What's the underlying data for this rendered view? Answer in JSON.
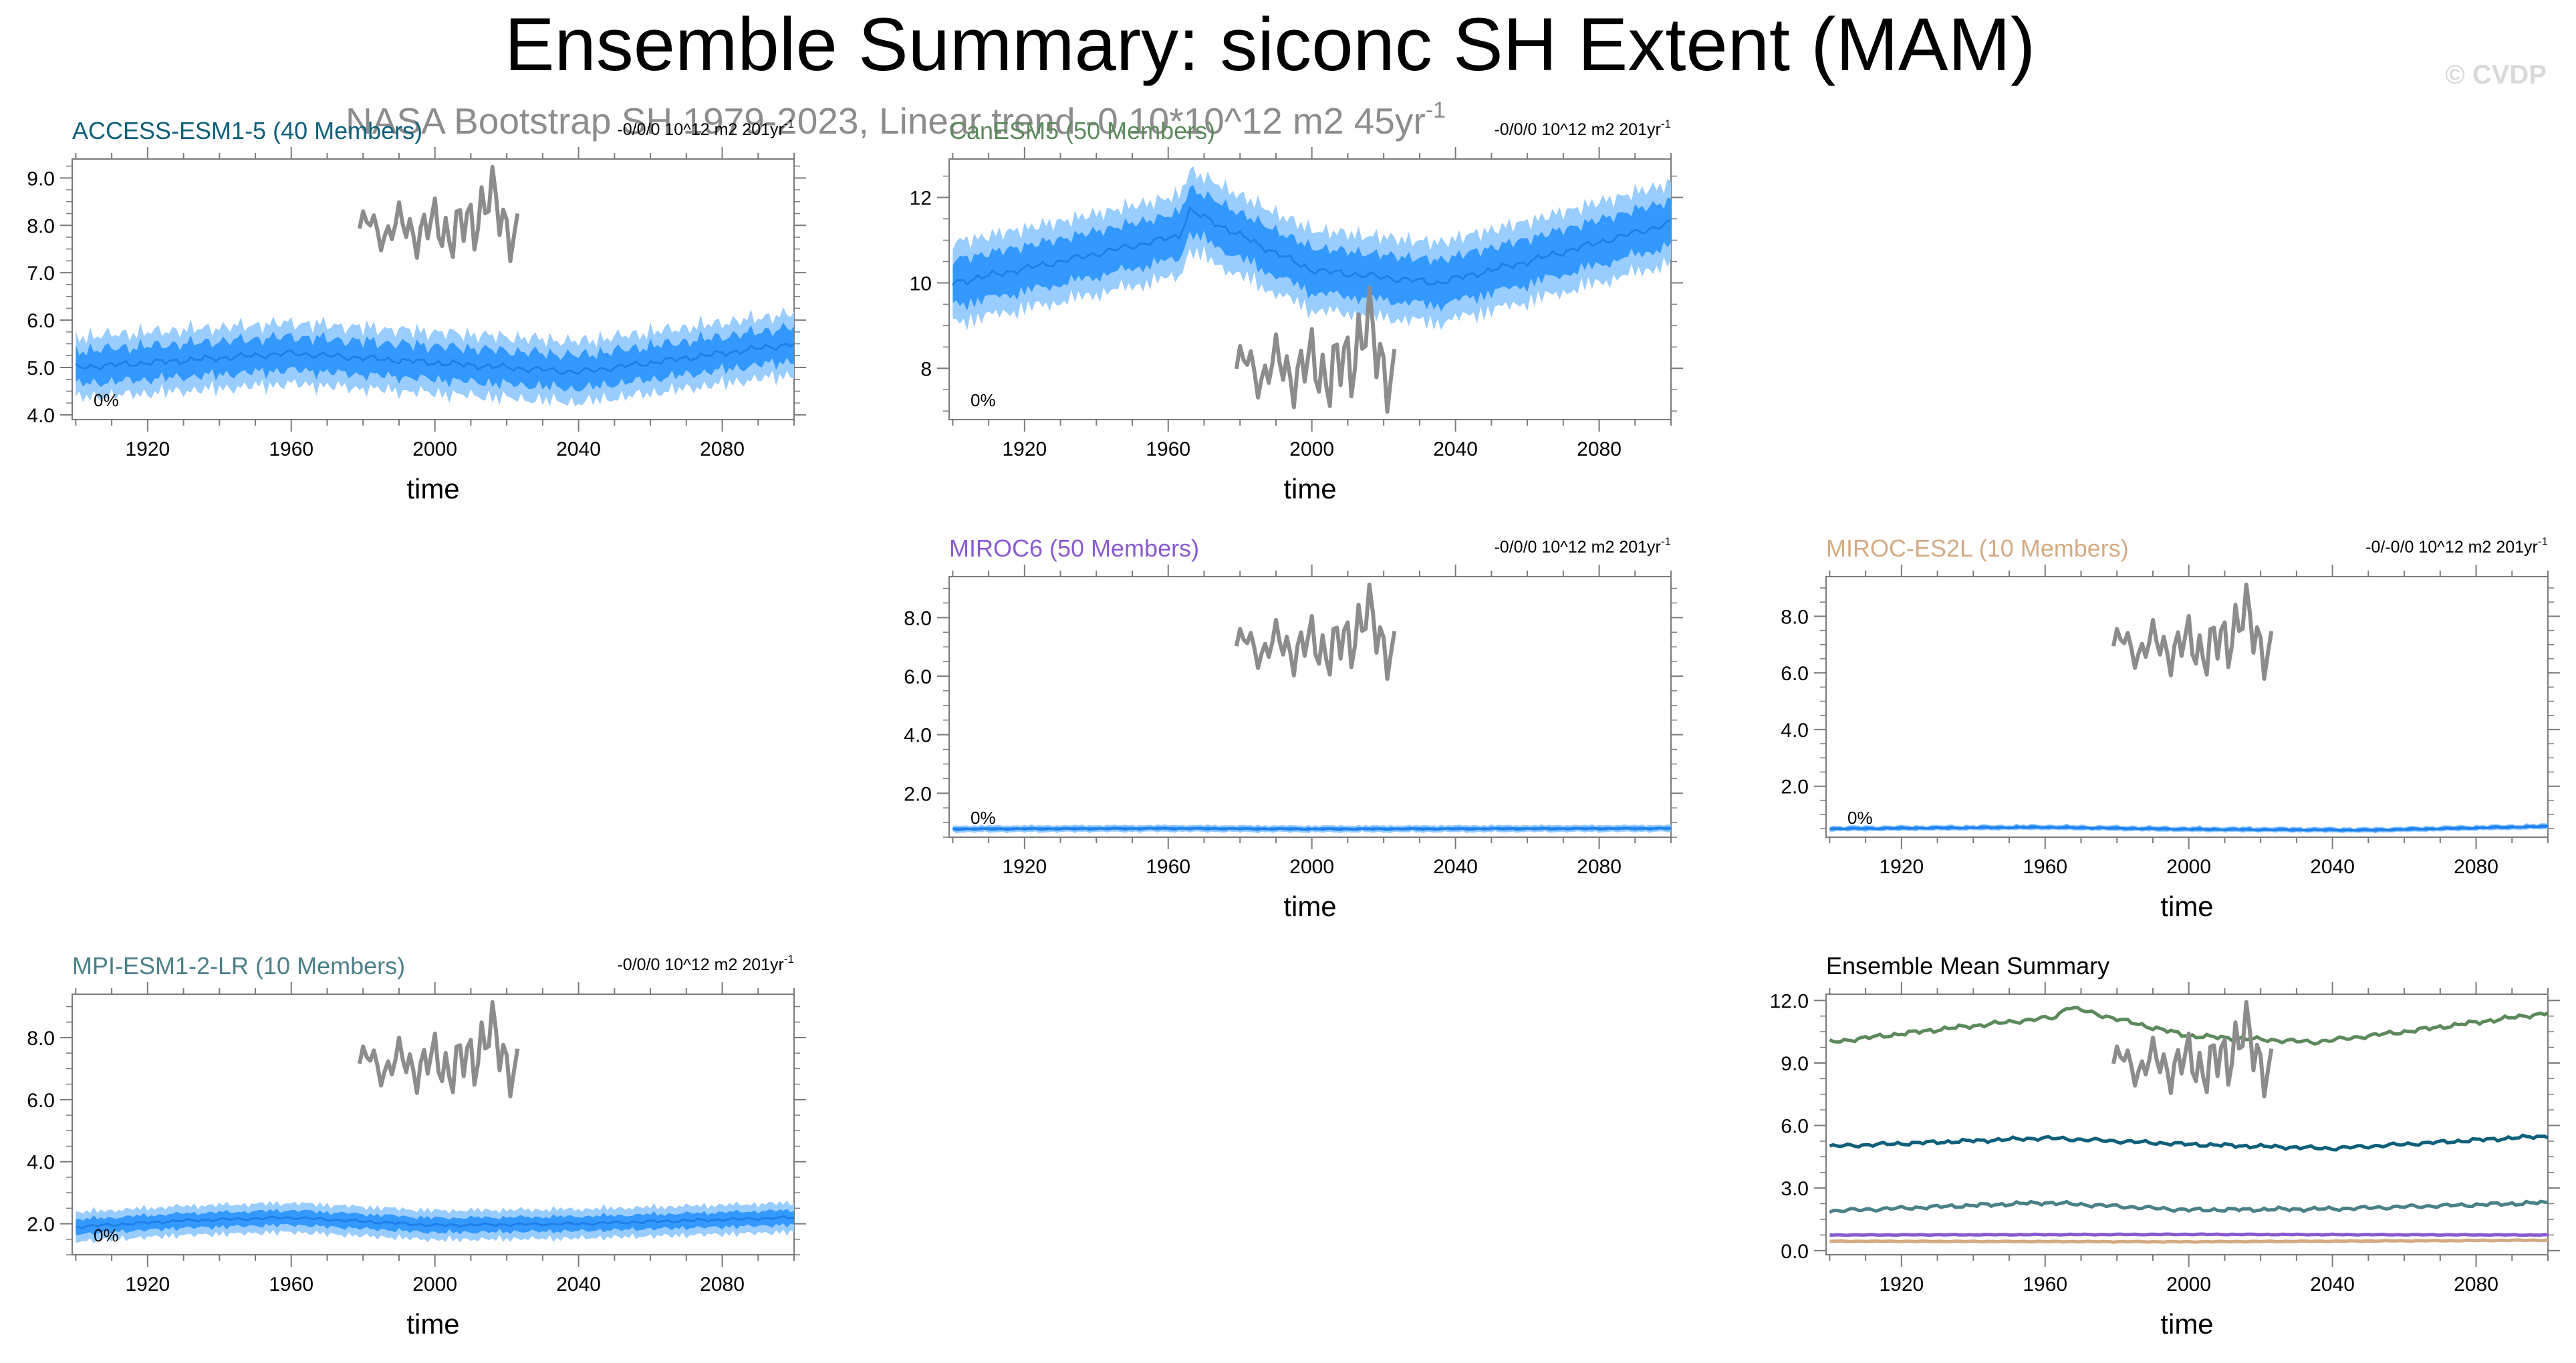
{
  "page": {
    "title": "Ensemble Summary: siconc SH Extent (MAM)",
    "watermark": "© CVDP",
    "obs_subtitle": "NASA Bootstrap SH 1979-2023, Linear trend -0.10*10^12 m2 45yr",
    "obs_subtitle_sup": "-1"
  },
  "colors": {
    "band_outer": "#99ccff",
    "band_inner": "#3399ff",
    "mean_line": "#1f7fe6",
    "obs_line": "#8c8c8c",
    "frame": "#7a7a7a",
    "ACCESS-ESM1-5": "#0f5f7a",
    "CanESM5": "#5a8a5a",
    "MIROC6": "#8a5ad0",
    "MIROC-ES2L": "#d4aa82",
    "MPI-ESM1-2-LR": "#4a8088"
  },
  "chart_data": [
    {
      "id": "access",
      "type": "area",
      "title": "ACCESS-ESM1-5 (40 Members)",
      "trend_label": "-0/0/0 10^12 m2 201yr",
      "trend_sup": "-1",
      "pct_label": "0%",
      "xlabel": "time",
      "ylabel": "",
      "xlim": [
        1899,
        2100
      ],
      "ylim": [
        3.9,
        9.4
      ],
      "xticks": [
        "1920",
        "1960",
        "2000",
        "2040",
        "2080"
      ],
      "yticks": [
        "4.0",
        "5.0",
        "6.0",
        "7.0",
        "8.0",
        "9.0"
      ],
      "mean_keypoints": [
        [
          1900,
          5.0
        ],
        [
          1960,
          5.3
        ],
        [
          2000,
          5.1
        ],
        [
          2040,
          4.9
        ],
        [
          2100,
          5.5
        ]
      ],
      "inner_halfwidth": 0.3,
      "outer_halfwidth": 0.55,
      "noise": 0.18,
      "obs_ylim": [
        6.85,
        9.3
      ],
      "obs_x": [
        1979,
        2023
      ],
      "obs_y": [
        0.42,
        0.2
      ]
    },
    {
      "id": "canesm",
      "type": "area",
      "title": "CanESM5 (50 Members)",
      "trend_label": "-0/0/0 10^12 m2 201yr",
      "trend_sup": "-1",
      "pct_label": "0%",
      "xlabel": "time",
      "ylabel": "",
      "xlim": [
        1899,
        2100
      ],
      "ylim": [
        6.8,
        12.9
      ],
      "xticks": [
        "1920",
        "1960",
        "2000",
        "2040",
        "2080"
      ],
      "yticks": [
        "8",
        "10",
        "12"
      ],
      "mean_keypoints": [
        [
          1900,
          10.0
        ],
        [
          1930,
          10.5
        ],
        [
          1963,
          11.1
        ],
        [
          1966,
          11.7
        ],
        [
          1985,
          10.9
        ],
        [
          2000,
          10.3
        ],
        [
          2035,
          10.0
        ],
        [
          2060,
          10.5
        ],
        [
          2100,
          11.4
        ]
      ],
      "inner_halfwidth": 0.45,
      "outer_halfwidth": 0.8,
      "noise": 0.22,
      "obs_ylim": [
        8.0,
        10.8
      ],
      "obs_x": [
        1979,
        2023
      ],
      "obs_y": [
        0.5,
        0.15
      ]
    },
    {
      "id": "miroc6",
      "type": "area",
      "title": "MIROC6 (50 Members)",
      "trend_label": "-0/0/0 10^12 m2 201yr",
      "trend_sup": "-1",
      "pct_label": "0%",
      "xlabel": "time",
      "ylabel": "",
      "xlim": [
        1899,
        2100
      ],
      "ylim": [
        0.5,
        9.4
      ],
      "xticks": [
        "1920",
        "1960",
        "2000",
        "2040",
        "2080"
      ],
      "yticks": [
        "2.0",
        "4.0",
        "6.0",
        "8.0"
      ],
      "mean_keypoints": [
        [
          1900,
          0.78
        ],
        [
          1960,
          0.8
        ],
        [
          2000,
          0.78
        ],
        [
          2100,
          0.8
        ]
      ],
      "inner_halfwidth": 0.05,
      "outer_halfwidth": 0.1,
      "noise": 0.03,
      "obs_ylim": [
        6.85,
        9.3
      ],
      "obs_x": [
        1979,
        2023
      ],
      "obs_y": [
        0.5,
        0.15
      ]
    },
    {
      "id": "miroces2l",
      "type": "area",
      "title": "MIROC-ES2L (10 Members)",
      "trend_label": "-0/-0/0 10^12 m2 201yr",
      "trend_sup": "-1",
      "pct_label": "0%",
      "xlabel": "time",
      "ylabel": "",
      "xlim": [
        1899,
        2100
      ],
      "ylim": [
        0.2,
        9.4
      ],
      "xticks": [
        "1920",
        "1960",
        "2000",
        "2040",
        "2080"
      ],
      "yticks": [
        "2.0",
        "4.0",
        "6.0",
        "8.0"
      ],
      "mean_keypoints": [
        [
          1900,
          0.5
        ],
        [
          1960,
          0.55
        ],
        [
          2000,
          0.48
        ],
        [
          2050,
          0.45
        ],
        [
          2100,
          0.58
        ]
      ],
      "inner_halfwidth": 0.05,
      "outer_halfwidth": 0.08,
      "noise": 0.04,
      "obs_ylim": [
        6.85,
        9.3
      ],
      "obs_x": [
        1979,
        2023
      ],
      "obs_y": [
        0.5,
        0.15
      ]
    },
    {
      "id": "mpi",
      "type": "area",
      "title": "MPI-ESM1-2-LR (10 Members)",
      "trend_label": "-0/0/0 10^12 m2 201yr",
      "trend_sup": "-1",
      "pct_label": "0%",
      "xlabel": "time",
      "ylabel": "",
      "xlim": [
        1899,
        2100
      ],
      "ylim": [
        1.0,
        9.4
      ],
      "xticks": [
        "1920",
        "1960",
        "2000",
        "2040",
        "2080"
      ],
      "yticks": [
        "2.0",
        "4.0",
        "6.0",
        "8.0"
      ],
      "mean_keypoints": [
        [
          1900,
          1.9
        ],
        [
          1930,
          2.1
        ],
        [
          1960,
          2.2
        ],
        [
          2000,
          1.95
        ],
        [
          2040,
          2.0
        ],
        [
          2100,
          2.2
        ]
      ],
      "inner_halfwidth": 0.2,
      "outer_halfwidth": 0.4,
      "noise": 0.12,
      "obs_ylim": [
        6.85,
        9.3
      ],
      "obs_x": [
        1979,
        2023
      ],
      "obs_y": [
        0.5,
        0.15
      ]
    },
    {
      "id": "summary",
      "type": "line",
      "title": "Ensemble Mean Summary",
      "xlabel": "time",
      "ylabel": "",
      "xlim": [
        1899,
        2100
      ],
      "ylim": [
        -0.2,
        12.3
      ],
      "xticks": [
        "1920",
        "1960",
        "2000",
        "2040",
        "2080"
      ],
      "yticks": [
        "0.0",
        "3.0",
        "6.0",
        "9.0",
        "12.0"
      ],
      "obs_ylim": [
        6.85,
        9.3
      ],
      "obs_x": [
        1979,
        2023
      ],
      "obs_y": [
        0.5,
        0.15
      ],
      "series": [
        {
          "name": "CanESM5",
          "color": "#5a8a5a",
          "keypoints": [
            [
              1900,
              10.0
            ],
            [
              1930,
              10.6
            ],
            [
              1963,
              11.2
            ],
            [
              1966,
              11.7
            ],
            [
              1985,
              10.9
            ],
            [
              2000,
              10.3
            ],
            [
              2035,
              10.0
            ],
            [
              2060,
              10.5
            ],
            [
              2100,
              11.4
            ]
          ],
          "noise": 0.12
        },
        {
          "name": "ACCESS-ESM1-5",
          "color": "#0f5f7a",
          "keypoints": [
            [
              1900,
              5.0
            ],
            [
              1960,
              5.4
            ],
            [
              2000,
              5.1
            ],
            [
              2040,
              4.9
            ],
            [
              2100,
              5.5
            ]
          ],
          "noise": 0.1
        },
        {
          "name": "MPI-ESM1-2-LR",
          "color": "#4a8088",
          "keypoints": [
            [
              1900,
              1.9
            ],
            [
              1930,
              2.1
            ],
            [
              1960,
              2.3
            ],
            [
              2000,
              1.95
            ],
            [
              2040,
              2.0
            ],
            [
              2100,
              2.3
            ]
          ],
          "noise": 0.1
        },
        {
          "name": "MIROC6",
          "color": "#8a5ad0",
          "keypoints": [
            [
              1900,
              0.75
            ],
            [
              2000,
              0.78
            ],
            [
              2100,
              0.75
            ]
          ],
          "noise": 0.02
        },
        {
          "name": "MIROC-ES2L",
          "color": "#d4aa82",
          "keypoints": [
            [
              1900,
              0.45
            ],
            [
              2000,
              0.42
            ],
            [
              2100,
              0.5
            ]
          ],
          "noise": 0.02
        }
      ]
    }
  ]
}
